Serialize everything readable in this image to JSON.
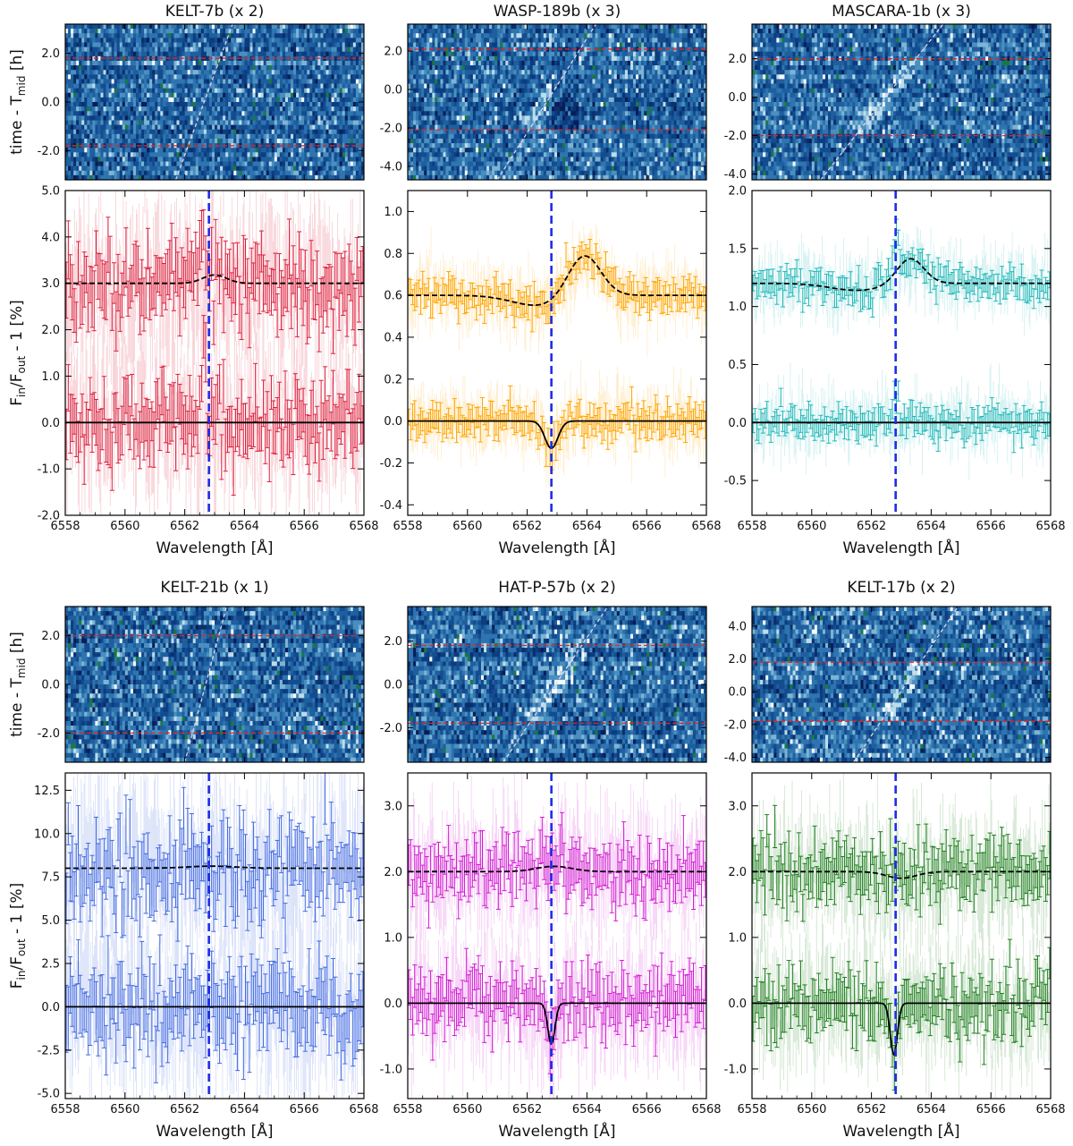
{
  "figure": {
    "ylabel_top": "time - T",
    "ylabel_top_sub": "mid",
    "ylabel_top_unit": " [h]",
    "ylabel_bottom": "F",
    "ylabel_bottom_sub1": "in",
    "ylabel_bottom_mid": "/F",
    "ylabel_bottom_sub2": "out",
    "ylabel_bottom_unit": " - 1 [%]",
    "xlabel": "Wavelength [Å]"
  },
  "chart_data": [
    {
      "type": "line",
      "title": "KELT-7b (x 2)",
      "color": "#dc1f3c",
      "xlim": [
        6558,
        6568
      ],
      "xticks": [
        6558,
        6560,
        6562,
        6564,
        6566,
        6568
      ],
      "line_center": 6562.81,
      "map": {
        "ylim": [
          -3.2,
          3.2
        ],
        "yticks": [
          "2.0",
          "0.0",
          "-2.0"
        ],
        "contact_times": [
          1.8,
          -1.8
        ],
        "trail": [
          [
            6561.7,
            -3.2
          ],
          [
            6563.6,
            3.2
          ]
        ]
      },
      "spectrum": {
        "ylim": [
          -2.0,
          5.0
        ],
        "yticks": [
          "5.0",
          "4.0",
          "3.0",
          "2.0",
          "1.0",
          "0.0",
          "-1.0",
          "-2.0"
        ],
        "offset": 3.0,
        "noise_std": 0.42,
        "err": 0.5,
        "spike": {
          "x": 6562.6,
          "amp": 1.2
        },
        "model_residual": {
          "amp": 0.18,
          "x0": 6563.0,
          "sigma": 0.4
        },
        "model_absorption": {
          "depth": 0.0,
          "x0": 6562.81,
          "sigma": 0.2
        }
      }
    },
    {
      "type": "line",
      "title": "WASP-189b (x 3)",
      "color": "#ffa500",
      "xlim": [
        6558,
        6568
      ],
      "xticks": [
        6558,
        6560,
        6562,
        6564,
        6566,
        6568
      ],
      "line_center": 6562.81,
      "map": {
        "ylim": [
          -4.7,
          3.4
        ],
        "yticks": [
          "2.0",
          "0.0",
          "-2.0",
          "-4.0"
        ],
        "contact_times": [
          2.1,
          -2.1
        ],
        "trail": [
          [
            6561.0,
            -4.7
          ],
          [
            6564.3,
            3.4
          ]
        ]
      },
      "spectrum": {
        "ylim": [
          -0.45,
          1.1
        ],
        "yticks": [
          "1.0",
          "0.8",
          "0.6",
          "0.4",
          "0.2",
          "0.0",
          "-0.2",
          "-0.4"
        ],
        "offset": 0.6,
        "noise_std": 0.035,
        "err": 0.05,
        "spike": null,
        "model_residual": {
          "amp": 0.2,
          "x0": 6563.9,
          "sigma": 0.55,
          "slope": 0.012,
          "dip": {
            "depth": -0.05,
            "x0": 6562.4,
            "sigma": 0.9
          }
        },
        "model_absorption": {
          "depth": -0.13,
          "x0": 6562.81,
          "sigma": 0.22
        }
      }
    },
    {
      "type": "line",
      "title": "MASCARA-1b (x 3)",
      "color": "#20b8b8",
      "xlim": [
        6558,
        6568
      ],
      "xticks": [
        6558,
        6560,
        6562,
        6564,
        6566,
        6568
      ],
      "line_center": 6562.81,
      "map": {
        "ylim": [
          -4.3,
          3.8
        ],
        "yticks": [
          "2.0",
          "0.0",
          "-2.0",
          "-4.0"
        ],
        "contact_times": [
          2.0,
          -2.0
        ],
        "trail": [
          [
            6560.3,
            -4.3
          ],
          [
            6564.4,
            3.8
          ]
        ]
      },
      "spectrum": {
        "ylim": [
          -0.8,
          2.0
        ],
        "yticks": [
          "2.0",
          "1.5",
          "1.0",
          "0.5",
          "0.0",
          "-0.5"
        ],
        "offset": 1.2,
        "noise_std": 0.065,
        "err": 0.08,
        "spike": {
          "x": 6562.8,
          "amp": 0.25
        },
        "model_residual": {
          "amp": 0.22,
          "x0": 6563.3,
          "sigma": 0.45,
          "dip": {
            "depth": -0.06,
            "x0": 6561.5,
            "sigma": 0.9
          }
        },
        "model_absorption": {
          "depth": 0.0,
          "x0": 6562.81,
          "sigma": 0.2
        }
      }
    },
    {
      "type": "line",
      "title": "KELT-21b (x 1)",
      "color": "#4169e1",
      "xlim": [
        6558,
        6568
      ],
      "xticks": [
        6558,
        6560,
        6562,
        6564,
        6566,
        6568
      ],
      "line_center": 6562.81,
      "map": {
        "ylim": [
          -3.2,
          3.2
        ],
        "yticks": [
          "2.0",
          "0.0",
          "-2.0"
        ],
        "contact_times": [
          2.0,
          -2.0
        ],
        "trail": [
          [
            6562.0,
            -3.2
          ],
          [
            6563.4,
            3.2
          ]
        ]
      },
      "spectrum": {
        "ylim": [
          -5.3,
          13.5
        ],
        "yticks": [
          "12.5",
          "10.0",
          "7.5",
          "5.0",
          "2.5",
          "0.0",
          "-2.5",
          "-5.0"
        ],
        "offset": 8.0,
        "noise_std": 1.2,
        "err": 1.5,
        "spike": null,
        "model_residual": {
          "amp": 0.12,
          "x0": 6562.9,
          "sigma": 0.8
        },
        "model_absorption": {
          "depth": 0.0,
          "x0": 6562.81,
          "sigma": 0.2
        }
      }
    },
    {
      "type": "line",
      "title": "HAT-P-57b (x 2)",
      "color": "#d21ad2",
      "xlim": [
        6558,
        6568
      ],
      "xticks": [
        6558,
        6560,
        6562,
        6564,
        6566,
        6568
      ],
      "line_center": 6562.81,
      "map": {
        "ylim": [
          -3.6,
          3.6
        ],
        "yticks": [
          "2.0",
          "0.0",
          "-2.0"
        ],
        "contact_times": [
          1.8,
          -1.8
        ],
        "trail": [
          [
            6561.2,
            -3.6
          ],
          [
            6564.7,
            3.6
          ]
        ]
      },
      "spectrum": {
        "ylim": [
          -1.45,
          3.5
        ],
        "yticks": [
          "3.0",
          "2.0",
          "1.0",
          "0.0",
          "-1.0"
        ],
        "offset": 2.0,
        "noise_std": 0.22,
        "err": 0.28,
        "spike": null,
        "model_residual": {
          "amp": 0.08,
          "x0": 6562.9,
          "sigma": 0.6
        },
        "model_absorption": {
          "depth": -0.62,
          "x0": 6562.81,
          "sigma": 0.12
        }
      }
    },
    {
      "type": "line",
      "title": "KELT-17b (x 2)",
      "color": "#1d7f1d",
      "xlim": [
        6558,
        6568
      ],
      "xticks": [
        6558,
        6560,
        6562,
        6564,
        6566,
        6568
      ],
      "line_center": 6562.81,
      "map": {
        "ylim": [
          -4.3,
          5.2
        ],
        "yticks": [
          "4.0",
          "2.0",
          "0.0",
          "-2.0",
          "-4.0"
        ],
        "contact_times": [
          1.8,
          -1.8
        ],
        "trail": [
          [
            6561.4,
            -4.3
          ],
          [
            6564.9,
            5.2
          ]
        ]
      },
      "spectrum": {
        "ylim": [
          -1.45,
          3.5
        ],
        "yticks": [
          "3.0",
          "2.0",
          "1.0",
          "0.0",
          "-1.0"
        ],
        "offset": 2.0,
        "noise_std": 0.22,
        "err": 0.28,
        "spike": null,
        "model_residual": {
          "amp": -0.1,
          "x0": 6563.0,
          "sigma": 0.5
        },
        "model_absorption": {
          "depth": -0.78,
          "x0": 6562.75,
          "sigma": 0.12
        }
      }
    }
  ]
}
